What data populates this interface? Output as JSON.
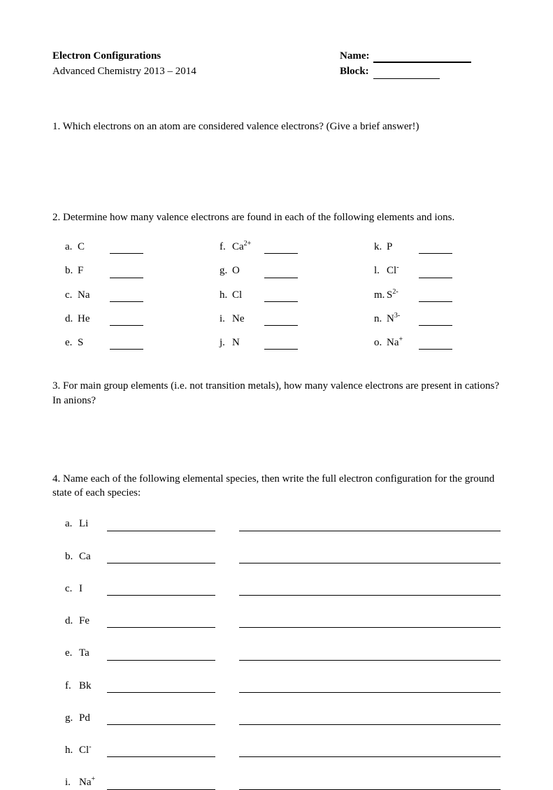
{
  "header": {
    "title": "Electron Configurations",
    "subtitle": "Advanced Chemistry 2013 – 2014",
    "name_label": "Name:",
    "block_label": "Block:"
  },
  "q1": {
    "text": "1. Which electrons on an atom are considered valence electrons? (Give a brief answer!)"
  },
  "q2": {
    "text": "2. Determine how many valence electrons are found in each of the following elements and ions.",
    "items_col1": [
      {
        "letter": "a.",
        "label": "C",
        "sup": ""
      },
      {
        "letter": "b.",
        "label": "F",
        "sup": ""
      },
      {
        "letter": "c.",
        "label": "Na",
        "sup": ""
      },
      {
        "letter": "d.",
        "label": "He",
        "sup": ""
      },
      {
        "letter": "e.",
        "label": "S",
        "sup": ""
      }
    ],
    "items_col2": [
      {
        "letter": "f.",
        "label": "Ca",
        "sup": "2+"
      },
      {
        "letter": "g.",
        "label": "O",
        "sup": ""
      },
      {
        "letter": "h.",
        "label": "Cl",
        "sup": ""
      },
      {
        "letter": "i.",
        "label": "Ne",
        "sup": ""
      },
      {
        "letter": "j.",
        "label": "N",
        "sup": ""
      }
    ],
    "items_col3": [
      {
        "letter": "k.",
        "label": "P",
        "sup": ""
      },
      {
        "letter": "l.",
        "label": "Cl",
        "sup": "-"
      },
      {
        "letter": "m.",
        "label": "S",
        "sup": "2-"
      },
      {
        "letter": "n.",
        "label": "N",
        "sup": "3-"
      },
      {
        "letter": "o.",
        "label": "Na",
        "sup": "+"
      }
    ]
  },
  "q3": {
    "text": "3. For main group elements (i.e. not transition metals), how many valence electrons are present in cations?  In anions?"
  },
  "q4": {
    "text": "4. Name each of the following elemental species, then write the full electron configuration for the ground state of each species:",
    "items": [
      {
        "letter": "a.",
        "label": "Li",
        "sup": ""
      },
      {
        "letter": "b.",
        "label": "Ca",
        "sup": ""
      },
      {
        "letter": "c.",
        "label": "I",
        "sup": ""
      },
      {
        "letter": "d.",
        "label": "Fe",
        "sup": ""
      },
      {
        "letter": "e.",
        "label": "Ta",
        "sup": ""
      },
      {
        "letter": "f.",
        "label": "Bk",
        "sup": ""
      },
      {
        "letter": "g.",
        "label": "Pd",
        "sup": ""
      },
      {
        "letter": "h.",
        "label": "Cl",
        "sup": "-"
      },
      {
        "letter": "i.",
        "label": "Na",
        "sup": "+"
      }
    ]
  }
}
